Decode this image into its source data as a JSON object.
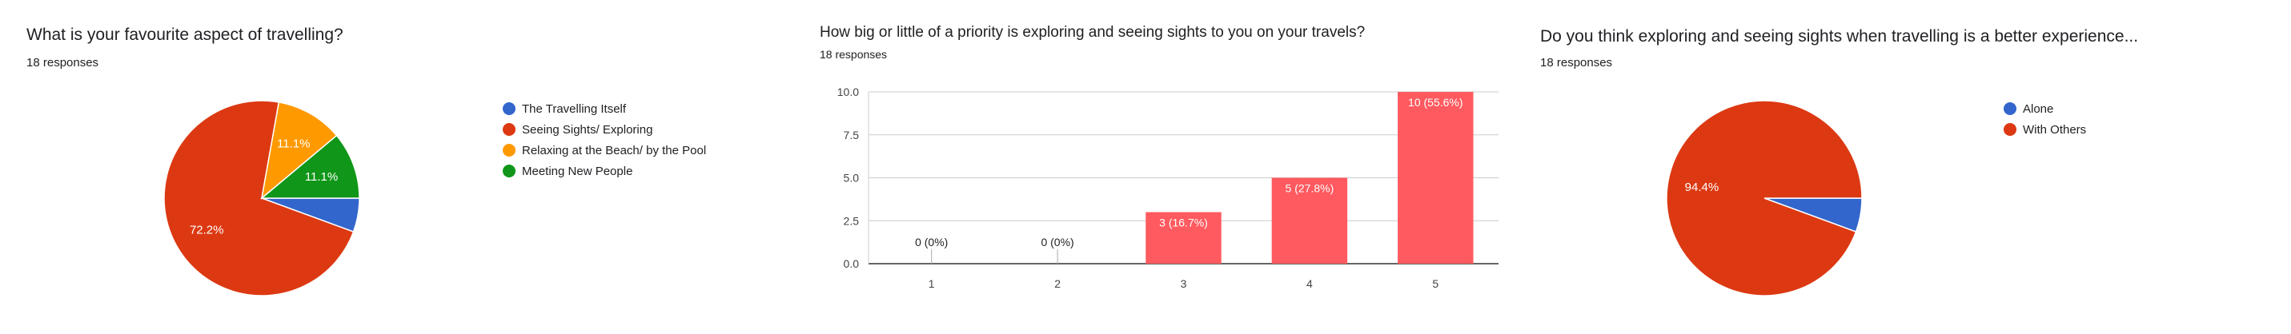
{
  "charts": [
    {
      "title": "What is your favourite aspect of travelling?",
      "responses": "18 responses",
      "chart_data": {
        "type": "pie",
        "categories": [
          "The Travelling Itself",
          "Seeing Sights/ Exploring",
          "Relaxing at the Beach/ by the Pool",
          "Meeting New People"
        ],
        "values": [
          5.6,
          72.2,
          11.1,
          11.1
        ],
        "labels": [
          "",
          "72.2%",
          "11.1%",
          "11.1%"
        ],
        "colors": [
          "#3366cc",
          "#dc3912",
          "#ff9900",
          "#109618"
        ],
        "legend": "right"
      }
    },
    {
      "title": "How big or little of a priority is exploring and seeing sights to you on your travels?",
      "responses": "18 responses",
      "chart_data": {
        "type": "bar",
        "categories": [
          "1",
          "2",
          "3",
          "4",
          "5"
        ],
        "values": [
          0,
          0,
          3,
          5,
          10
        ],
        "labels": [
          "0 (0%)",
          "0 (0%)",
          "3 (16.7%)",
          "5 (27.8%)",
          "10 (55.6%)"
        ],
        "yticks": [
          "0.0",
          "2.5",
          "5.0",
          "7.5",
          "10.0"
        ],
        "ylim": [
          0,
          10
        ],
        "color": "#ff5a5f",
        "grid": true
      }
    },
    {
      "title": "Do you think exploring and seeing sights when travelling is a better experience...",
      "responses": "18 responses",
      "chart_data": {
        "type": "pie",
        "categories": [
          "Alone",
          "With Others"
        ],
        "values": [
          5.6,
          94.4
        ],
        "labels": [
          "",
          "94.4%"
        ],
        "colors": [
          "#3366cc",
          "#dc3912"
        ],
        "legend": "right"
      }
    }
  ]
}
